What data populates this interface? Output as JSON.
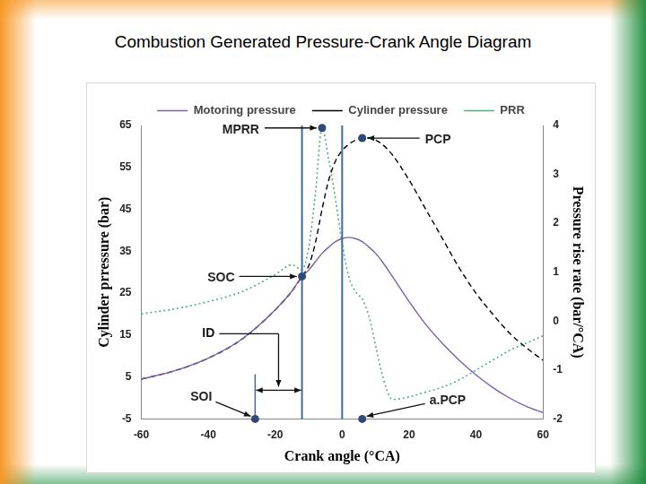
{
  "chart_data": {
    "type": "line",
    "title": "Combustion Generated Pressure-Crank Angle Diagram",
    "x_label": "Crank angle (°CA)",
    "y_label": "Cylinder prressure (bar)",
    "y2_label": "Pressure rise rate (bar/°CA)",
    "xlim": [
      -60,
      60
    ],
    "xticks": [
      -60,
      -40,
      -20,
      0,
      20,
      40,
      60
    ],
    "ylim": [
      -5,
      65
    ],
    "yticks": [
      -5,
      5,
      15,
      25,
      35,
      45,
      55,
      65
    ],
    "y2lim": [
      -2,
      4
    ],
    "y2ticks": [
      -2,
      -1,
      0,
      1,
      2,
      3,
      4
    ],
    "grid": false,
    "legend": "top",
    "x": [
      -60,
      -50,
      -40,
      -30,
      -20,
      -15,
      -12,
      -10,
      -8,
      -6,
      -4,
      -2,
      0,
      2,
      4,
      6,
      8,
      10,
      12,
      15,
      20,
      25,
      30,
      35,
      40,
      45,
      50,
      55,
      60
    ],
    "series": [
      {
        "name": "Motoring pressure",
        "color": "#7b5fa8",
        "line_style": "solid",
        "values": [
          4.5,
          6.5,
          9.5,
          14,
          21,
          25.5,
          29,
          30.5,
          32.5,
          34.5,
          36,
          37.3,
          38,
          38.3,
          38,
          37.3,
          36,
          34.5,
          32.5,
          29,
          23,
          17.5,
          13,
          9,
          5.5,
          2.5,
          0,
          -2,
          -3.5
        ]
      },
      {
        "name": "Cylinder pressure",
        "color": "#000000",
        "line_style": "dashed",
        "values": [
          4.5,
          6.5,
          9.5,
          14,
          21,
          25.5,
          29,
          31.5,
          37,
          45,
          52,
          56.5,
          59,
          60.5,
          61.5,
          62,
          62,
          61.5,
          60.5,
          58,
          52,
          45,
          38,
          31,
          25,
          20,
          15.5,
          12,
          9
        ]
      },
      {
        "name": "PRR",
        "color": "#4fae7a",
        "line_style": "dotted",
        "axis": "y2",
        "values": [
          0.15,
          0.25,
          0.4,
          0.6,
          0.95,
          1.15,
          1.05,
          1.5,
          2.6,
          3.95,
          3.3,
          2.5,
          1.6,
          0.9,
          0.6,
          0.45,
          0.1,
          -0.5,
          -1.1,
          -1.6,
          -1.55,
          -1.45,
          -1.35,
          -1.2,
          -1.0,
          -0.8,
          -0.6,
          -0.45,
          -0.3
        ]
      }
    ],
    "vlines": [
      -12,
      0
    ],
    "annotations": [
      {
        "text": "MPRR",
        "x": -6,
        "y": 3.95,
        "axis": "y2"
      },
      {
        "text": "PCP",
        "x": 6,
        "y": 62
      },
      {
        "text": "SOC",
        "x": -12,
        "y": 29
      },
      {
        "text": "SOI",
        "x": -26,
        "y": -5
      },
      {
        "text": "a.PCP",
        "x": 6,
        "y": -5
      }
    ],
    "interval": {
      "text": "ID",
      "x": [
        -26,
        -12
      ]
    }
  }
}
